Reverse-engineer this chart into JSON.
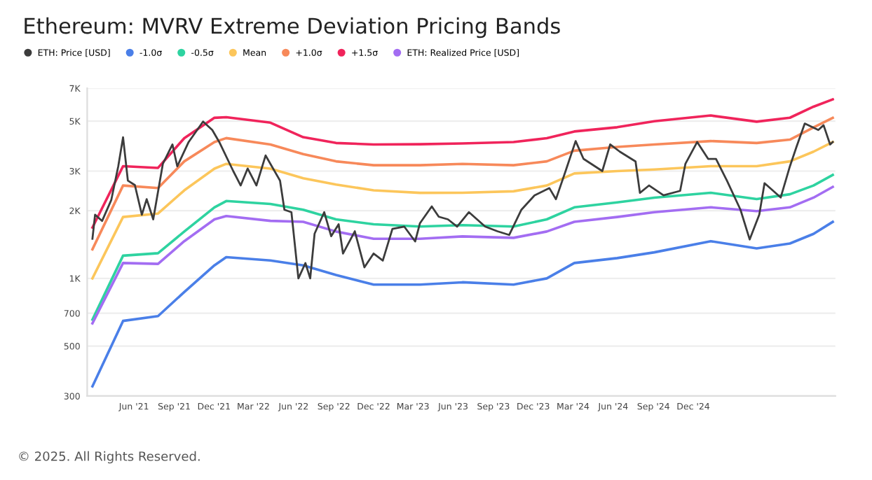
{
  "chart_data": {
    "type": "line",
    "title": "Ethereum: MVRV Extreme Deviation Pricing Bands",
    "x": [
      "2021-02-26",
      "2021-05-07",
      "2021-07-26",
      "2021-09-24",
      "2021-12-02",
      "2021-12-29",
      "2022-04-09",
      "2022-06-23",
      "2022-09-06",
      "2022-12-01",
      "2023-03-17",
      "2023-06-22",
      "2023-10-17",
      "2024-01-01",
      "2024-03-04",
      "2024-06-10",
      "2024-09-03",
      "2025-01-10",
      "2025-04-25",
      "2025-07-10",
      "2025-09-02",
      "2025-10-16"
    ],
    "series": [
      {
        "name": "ETH: Price [USD]",
        "color": "#3c3c3c",
        "x": [
          "2021-02-26",
          "2021-03-04",
          "2021-03-20",
          "2021-04-10",
          "2021-04-26",
          "2021-05-07",
          "2021-05-18",
          "2021-06-03",
          "2021-06-19",
          "2021-06-30",
          "2021-07-15",
          "2021-08-06",
          "2021-08-28",
          "2021-09-08",
          "2021-10-04",
          "2021-11-06",
          "2021-11-27",
          "2021-12-13",
          "2022-01-14",
          "2022-01-31",
          "2022-02-16",
          "2022-03-08",
          "2022-03-29",
          "2022-05-01",
          "2022-05-11",
          "2022-05-27",
          "2022-06-12",
          "2022-06-28",
          "2022-07-09",
          "2022-07-19",
          "2022-08-10",
          "2022-08-26",
          "2022-09-12",
          "2022-09-22",
          "2022-10-19",
          "2022-11-10",
          "2022-12-01",
          "2022-12-22",
          "2023-01-13",
          "2023-02-09",
          "2023-03-06",
          "2023-03-17",
          "2023-04-13",
          "2023-04-29",
          "2023-05-20",
          "2023-06-10",
          "2023-07-07",
          "2023-08-13",
          "2023-09-10",
          "2023-10-07",
          "2023-11-04",
          "2023-12-04",
          "2024-01-07",
          "2024-01-22",
          "2024-02-13",
          "2024-03-07",
          "2024-03-25",
          "2024-05-07",
          "2024-05-25",
          "2024-06-16",
          "2024-07-22",
          "2024-08-01",
          "2024-08-22",
          "2024-09-24",
          "2024-11-01",
          "2024-11-13",
          "2024-12-10",
          "2025-01-04",
          "2025-01-22",
          "2025-02-16",
          "2025-03-19",
          "2025-04-09",
          "2025-05-01",
          "2025-05-13",
          "2025-06-19",
          "2025-07-10",
          "2025-07-25",
          "2025-08-13",
          "2025-09-13",
          "2025-09-25",
          "2025-10-10",
          "2025-10-16"
        ],
        "values": [
          1500,
          1920,
          1800,
          2230,
          3150,
          4240,
          2720,
          2600,
          1920,
          2250,
          1830,
          3230,
          3940,
          3150,
          4040,
          4980,
          4570,
          4040,
          3000,
          2590,
          3080,
          2590,
          3520,
          2720,
          2020,
          1970,
          1000,
          1170,
          1000,
          1580,
          1970,
          1540,
          1740,
          1290,
          1620,
          1120,
          1290,
          1200,
          1660,
          1700,
          1460,
          1760,
          2090,
          1880,
          1830,
          1700,
          1970,
          1700,
          1620,
          1560,
          2020,
          2340,
          2520,
          2250,
          3000,
          4080,
          3400,
          3000,
          3940,
          3660,
          3310,
          2400,
          2590,
          2340,
          2450,
          3230,
          4040,
          3400,
          3400,
          2720,
          2020,
          1490,
          1920,
          2650,
          2290,
          3150,
          3840,
          4880,
          4570,
          4800,
          3940,
          4040
        ]
      },
      {
        "name": "-1.0σ",
        "color": "#4a7fe8",
        "values": [
          331,
          647,
          680,
          870,
          1143,
          1243,
          1201,
          1143,
          1035,
          938,
          938,
          961,
          938,
          1000,
          1171,
          1231,
          1306,
          1464,
          1359,
          1429,
          1577,
          1784
        ]
      },
      {
        "name": "-0.5σ",
        "color": "#2ed3a0",
        "values": [
          656,
          1262,
          1294,
          1616,
          2070,
          2208,
          2143,
          2020,
          1830,
          1740,
          1700,
          1725,
          1700,
          1830,
          2070,
          2177,
          2286,
          2403,
          2254,
          2366,
          2588,
          2884
        ]
      },
      {
        "name": "Mean",
        "color": "#fcc65b",
        "values": [
          1000,
          1875,
          1942,
          2463,
          3077,
          3230,
          3077,
          2788,
          2614,
          2463,
          2400,
          2403,
          2440,
          2588,
          2929,
          3000,
          3050,
          3155,
          3155,
          3314,
          3660,
          4040
        ]
      },
      {
        "name": "+1.0σ",
        "color": "#f7895a",
        "values": [
          1346,
          2588,
          2522,
          3314,
          4040,
          4205,
          3940,
          3570,
          3314,
          3185,
          3185,
          3230,
          3185,
          3314,
          3697,
          3843,
          3940,
          4080,
          4000,
          4140,
          4690,
          5176
        ]
      },
      {
        "name": "+1.5σ",
        "color": "#f0245b",
        "values": [
          1683,
          3155,
          3100,
          4200,
          5176,
          5210,
          4925,
          4245,
          4000,
          3940,
          3950,
          3980,
          4040,
          4200,
          4500,
          4700,
          5000,
          5300,
          4977,
          5180,
          5800,
          6250
        ]
      },
      {
        "name": "ETH: Realized Price [USD]",
        "color": "#a36df2",
        "values": [
          631,
          1171,
          1160,
          1464,
          1830,
          1894,
          1803,
          1784,
          1616,
          1500,
          1500,
          1537,
          1515,
          1616,
          1784,
          1875,
          1970,
          2070,
          1990,
          2070,
          2286,
          2551
        ]
      }
    ],
    "log": true,
    "ylim": [
      300,
      7000
    ],
    "yticks": [
      {
        "value": 300,
        "label": "300"
      },
      {
        "value": 500,
        "label": "500"
      },
      {
        "value": 700,
        "label": "700"
      },
      {
        "value": 1000,
        "label": "1K"
      },
      {
        "value": 2000,
        "label": "2K"
      },
      {
        "value": 3000,
        "label": "3K"
      },
      {
        "value": 5000,
        "label": "5K"
      },
      {
        "value": 7000,
        "label": "7K"
      }
    ],
    "xlim": [
      "2021-02-14",
      "2025-10-22"
    ],
    "xticks": [
      {
        "value": "2021-06-01",
        "label": "Jun '21"
      },
      {
        "value": "2021-09-01",
        "label": "Sep '21"
      },
      {
        "value": "2021-12-01",
        "label": "Dec '21"
      },
      {
        "value": "2022-03-01",
        "label": "Mar '22"
      },
      {
        "value": "2022-06-01",
        "label": "Jun '22"
      },
      {
        "value": "2022-09-01",
        "label": "Sep '22"
      },
      {
        "value": "2022-12-01",
        "label": "Dec '22"
      },
      {
        "value": "2023-03-01",
        "label": "Mar '23"
      },
      {
        "value": "2023-06-01",
        "label": "Jun '23"
      },
      {
        "value": "2023-09-01",
        "label": "Sep '23"
      },
      {
        "value": "2023-12-01",
        "label": "Dec '23"
      },
      {
        "value": "2024-03-01",
        "label": "Mar '24"
      },
      {
        "value": "2024-06-01",
        "label": "Jun '24"
      },
      {
        "value": "2024-09-01",
        "label": "Sep '24"
      },
      {
        "value": "2024-12-01",
        "label": "Dec '24"
      }
    ],
    "grid": "y",
    "legend": "top left",
    "marker": "none",
    "line_style": "solid",
    "annotations": [
      "© 2025. All Rights Reserved."
    ]
  }
}
